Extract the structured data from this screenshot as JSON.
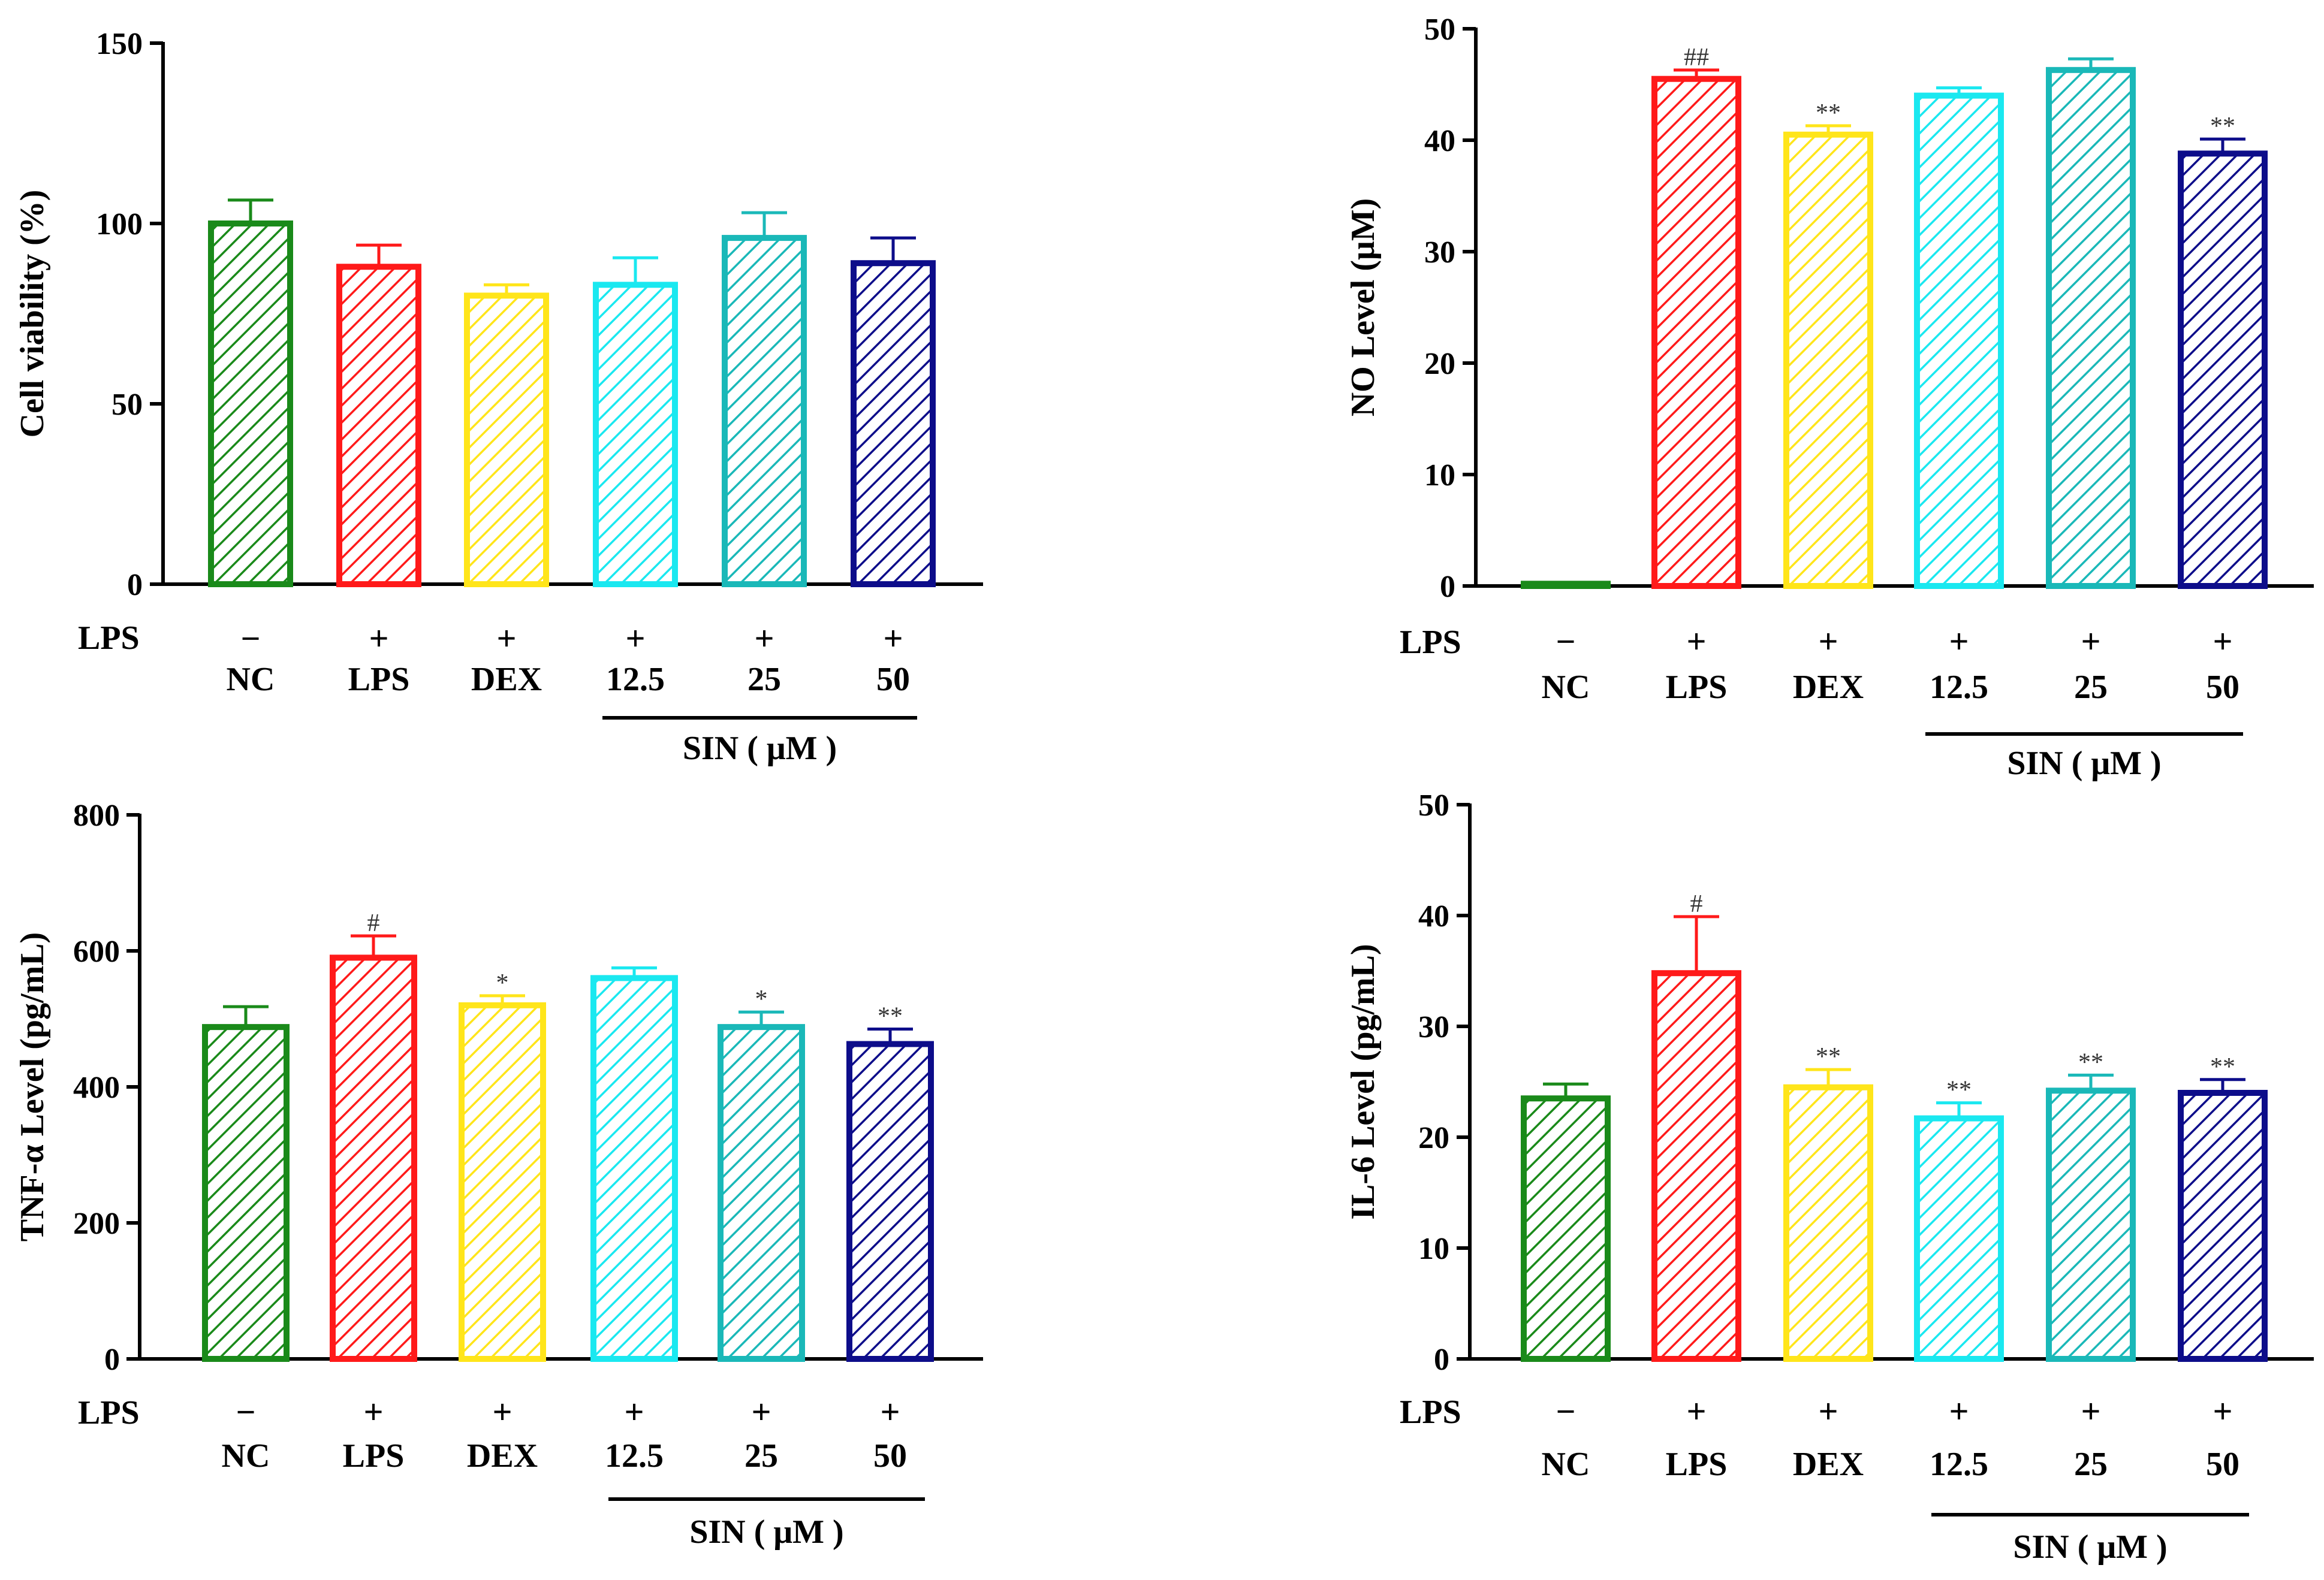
{
  "figure": {
    "background": "#ffffff"
  },
  "chart_data": [
    {
      "type": "bar",
      "title": "",
      "ylabel": "Cell viability (%)",
      "ylim": [
        0,
        150
      ],
      "yticks": [
        0,
        50,
        100,
        150
      ],
      "categories": [
        "NC",
        "LPS",
        "DEX",
        "12.5",
        "25",
        "50"
      ],
      "values": [
        100,
        88,
        80,
        83,
        96,
        89
      ],
      "errors": [
        6.5,
        6,
        3,
        7.5,
        7,
        7
      ],
      "significance": [
        "",
        "",
        "",
        "",
        "",
        ""
      ],
      "lps_row_label": "LPS",
      "lps_signs": [
        "−",
        "+",
        "+",
        "+",
        "+",
        "+"
      ],
      "group_label": "SIN ( μM )",
      "colors": [
        "#1a8a1a",
        "#ff1a1a",
        "#ffe51a",
        "#1ae8f0",
        "#1ab8b8",
        "#0d0d8a"
      ]
    },
    {
      "type": "bar",
      "title": "",
      "ylabel": "NO Level  (μM)",
      "ylim": [
        0,
        50
      ],
      "yticks": [
        0,
        10,
        20,
        30,
        40,
        50
      ],
      "categories": [
        "NC",
        "LPS",
        "DEX",
        "12.5",
        "25",
        "50"
      ],
      "values": [
        0.2,
        45.5,
        40.5,
        44,
        46.3,
        38.8
      ],
      "errors": [
        0,
        0.8,
        0.8,
        0.7,
        1.0,
        1.3
      ],
      "significance": [
        "",
        "##",
        "**",
        "",
        "",
        "**"
      ],
      "lps_row_label": "LPS",
      "lps_signs": [
        "−",
        "+",
        "+",
        "+",
        "+",
        "+"
      ],
      "group_label": "SIN ( μM )",
      "colors": [
        "#1a8a1a",
        "#ff1a1a",
        "#ffe51a",
        "#1ae8f0",
        "#1ab8b8",
        "#0d0d8a"
      ]
    },
    {
      "type": "bar",
      "title": "",
      "ylabel": "TNF-α Level  (pg/mL)",
      "ylim": [
        0,
        800
      ],
      "yticks": [
        0,
        200,
        400,
        600,
        800
      ],
      "categories": [
        "NC",
        "LPS",
        "DEX",
        "12.5",
        "25",
        "50"
      ],
      "values": [
        488,
        590,
        520,
        560,
        488,
        463
      ],
      "errors": [
        30,
        32,
        14,
        15,
        22,
        22
      ],
      "significance": [
        "",
        "#",
        "*",
        "",
        "*",
        "**"
      ],
      "lps_row_label": "LPS",
      "lps_signs": [
        "−",
        "+",
        "+",
        "+",
        "+",
        "+"
      ],
      "group_label": "SIN ( μM )",
      "colors": [
        "#1a8a1a",
        "#ff1a1a",
        "#ffe51a",
        "#1ae8f0",
        "#1ab8b8",
        "#0d0d8a"
      ]
    },
    {
      "type": "bar",
      "title": "",
      "ylabel": "IL-6  Level  (pg/mL)",
      "ylim": [
        0,
        50
      ],
      "yticks": [
        0,
        10,
        20,
        30,
        40,
        50
      ],
      "categories": [
        "NC",
        "LPS",
        "DEX",
        "12.5",
        "25",
        "50"
      ],
      "values": [
        23.5,
        34.8,
        24.5,
        21.7,
        24.2,
        24
      ],
      "errors": [
        1.3,
        5.1,
        1.6,
        1.4,
        1.4,
        1.2
      ],
      "significance": [
        "",
        "#",
        "**",
        "**",
        "**",
        "**"
      ],
      "lps_row_label": "LPS",
      "lps_signs": [
        "−",
        "+",
        "+",
        "+",
        "+",
        "+"
      ],
      "group_label": "SIN ( μM )",
      "colors": [
        "#1a8a1a",
        "#ff1a1a",
        "#ffe51a",
        "#1ae8f0",
        "#1ab8b8",
        "#0d0d8a"
      ]
    }
  ]
}
